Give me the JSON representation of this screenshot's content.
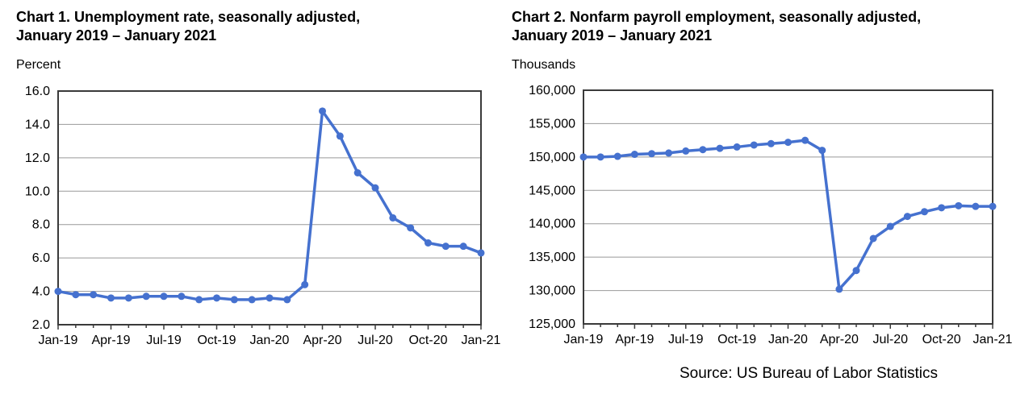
{
  "source_note": "Source: US Bureau of Labor Statistics",
  "colors": {
    "line": "#4571cf",
    "marker": "#4571cf",
    "grid": "#999999",
    "frame": "#3a3a3a",
    "text": "#000000",
    "background": "#ffffff"
  },
  "chart_data": [
    {
      "type": "line",
      "title_line1": "Chart 1. Unemployment rate, seasonally adjusted,",
      "title_line2": "January 2019 – January 2021",
      "unit_label": "Percent",
      "x": [
        "Jan-19",
        "Feb-19",
        "Mar-19",
        "Apr-19",
        "May-19",
        "Jun-19",
        "Jul-19",
        "Aug-19",
        "Sep-19",
        "Oct-19",
        "Nov-19",
        "Dec-19",
        "Jan-20",
        "Feb-20",
        "Mar-20",
        "Apr-20",
        "May-20",
        "Jun-20",
        "Jul-20",
        "Aug-20",
        "Sep-20",
        "Oct-20",
        "Nov-20",
        "Dec-20",
        "Jan-21"
      ],
      "x_tick_labels": [
        "Jan-19",
        "Apr-19",
        "Jul-19",
        "Oct-19",
        "Jan-20",
        "Apr-20",
        "Jul-20",
        "Oct-20",
        "Jan-21"
      ],
      "x_tick_label_every": 3,
      "values": [
        4.0,
        3.8,
        3.8,
        3.6,
        3.6,
        3.7,
        3.7,
        3.7,
        3.5,
        3.6,
        3.5,
        3.5,
        3.6,
        3.5,
        4.4,
        14.8,
        13.3,
        11.1,
        10.2,
        8.4,
        7.8,
        6.9,
        6.7,
        6.7,
        6.3
      ],
      "ylim": [
        2.0,
        16.0
      ],
      "ystep": 2.0,
      "y_format": "decimal1",
      "y_tick_labels": [
        "2.0",
        "4.0",
        "6.0",
        "8.0",
        "10.0",
        "12.0",
        "14.0",
        "16.0"
      ],
      "grid": true,
      "legend": null
    },
    {
      "type": "line",
      "title_line1": "Chart 2. Nonfarm payroll employment, seasonally adjusted,",
      "title_line2": "January 2019 – January 2021",
      "unit_label": "Thousands",
      "x": [
        "Jan-19",
        "Feb-19",
        "Mar-19",
        "Apr-19",
        "May-19",
        "Jun-19",
        "Jul-19",
        "Aug-19",
        "Sep-19",
        "Oct-19",
        "Nov-19",
        "Dec-19",
        "Jan-20",
        "Feb-20",
        "Mar-20",
        "Apr-20",
        "May-20",
        "Jun-20",
        "Jul-20",
        "Aug-20",
        "Sep-20",
        "Oct-20",
        "Nov-20",
        "Dec-20",
        "Jan-21"
      ],
      "x_tick_labels": [
        "Jan-19",
        "Apr-19",
        "Jul-19",
        "Oct-19",
        "Jan-20",
        "Apr-20",
        "Jul-20",
        "Oct-20",
        "Jan-21"
      ],
      "x_tick_label_every": 3,
      "values": [
        150000,
        150000,
        150100,
        150400,
        150500,
        150600,
        150900,
        151100,
        151300,
        151500,
        151800,
        152000,
        152200,
        152500,
        151000,
        130200,
        133000,
        137800,
        139600,
        141100,
        141800,
        142400,
        142700,
        142600,
        142600
      ],
      "ylim": [
        125000,
        160000
      ],
      "ystep": 5000,
      "y_format": "comma",
      "y_tick_labels": [
        "125,000",
        "130,000",
        "135,000",
        "140,000",
        "145,000",
        "150,000",
        "155,000",
        "160,000"
      ],
      "grid": true,
      "legend": null
    }
  ]
}
